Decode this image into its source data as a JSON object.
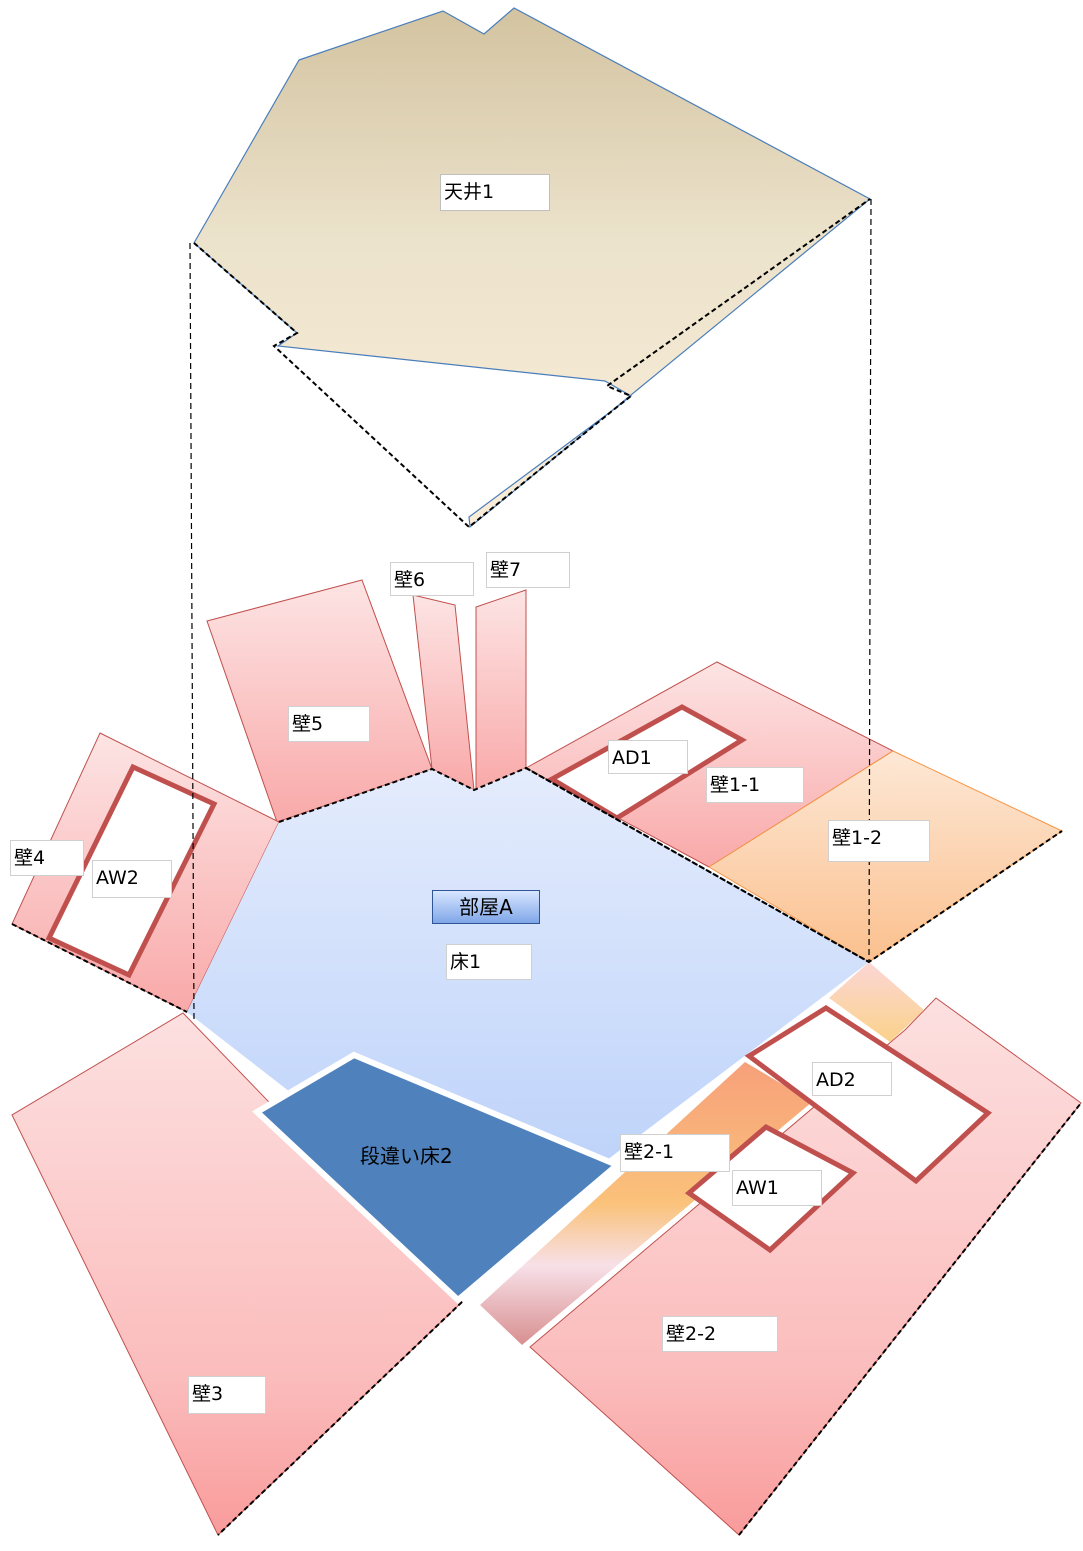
{
  "diagram": {
    "labels": {
      "ceiling1": "天井1",
      "wall6": "壁6",
      "wall7": "壁7",
      "wall5": "壁5",
      "ad1": "AD1",
      "wall1_1": "壁1-1",
      "wall1_2": "壁1-2",
      "wall4": "壁4",
      "aw2": "AW2",
      "room_a": "部屋A",
      "floor1": "床1",
      "ad2": "AD2",
      "step_floor2": "段違い床2",
      "wall2_1": "壁2-1",
      "aw1": "AW1",
      "wall3": "壁3",
      "wall2_2": "壁2-2"
    },
    "colors": {
      "ceiling": "#efe6cf",
      "ceiling_edge": "#4a7ebb",
      "floor": "#c4d6fb",
      "step_floor": "#4f81bd",
      "wall": "#fbc3c3",
      "wall_edge": "#c0504d",
      "wall_orange": "#fbd0a8",
      "orange_edge": "#f79646",
      "opening_frame": "#c0504d"
    }
  }
}
